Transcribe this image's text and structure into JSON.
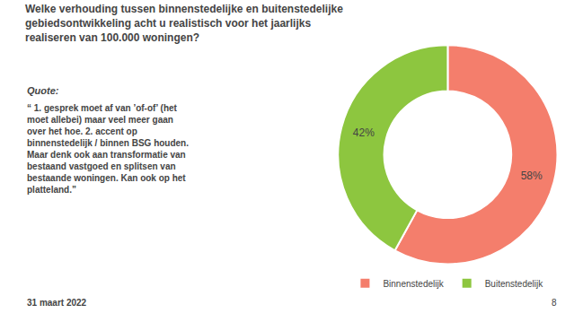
{
  "chart_data": {
    "type": "pie",
    "title": "Welke verhouding tussen binnenstedelijke en buitenstedelijke\ngebiedsontwikkeling acht u realistisch voor het jaarlijks\nrealiseren van 100.000 woningen?",
    "categories": [
      "Binnenstedelijk",
      "Buitenstedelijk"
    ],
    "values": [
      58,
      42
    ],
    "value_labels": [
      "58%",
      "42%"
    ],
    "data_labels": true,
    "colors": [
      "#f47e6c",
      "#8dc63f"
    ],
    "legend": "bottom",
    "annotations": [
      "Quote:",
      "“ 1. gesprek moet af van ’of-of’ (het\nmoet allebei) maar veel meer gaan\nover het hoe. 2. accent op\nbinnenstedelijk / binnen BSG houden.\nMaar denk ook aan transformatie van\nbestaand vastgoed en splitsen van\nbestaande woningen. Kan ook op het\nplatteland.”",
      "31 maart 2022",
      "8"
    ]
  }
}
